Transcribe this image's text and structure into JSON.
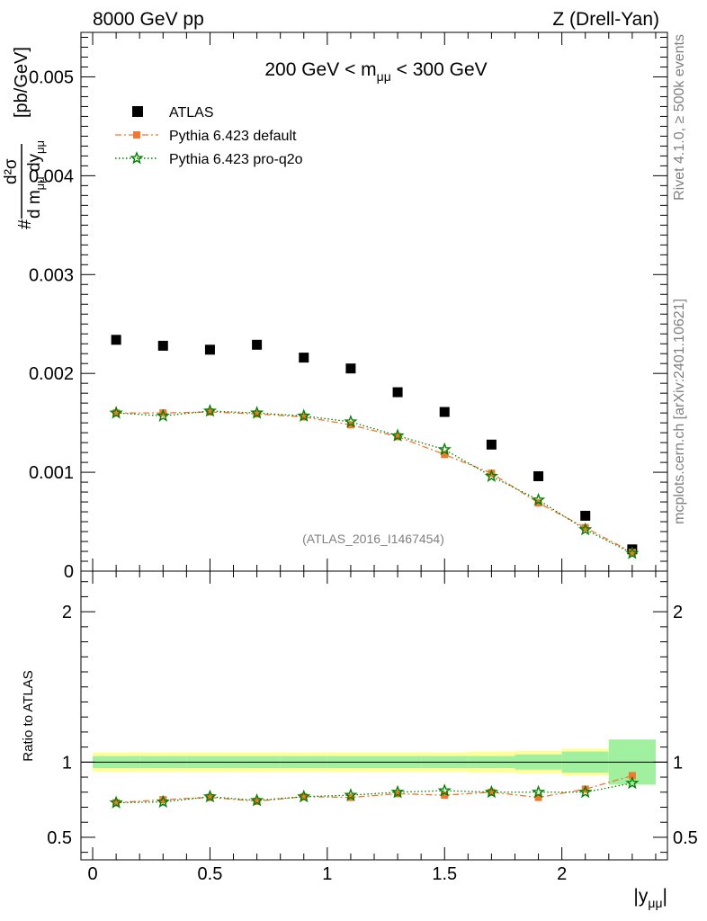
{
  "header": {
    "left": "8000 GeV pp",
    "right": "Z (Drell-Yan)"
  },
  "side": {
    "rivet": "Rivet 4.1.0, ≥ 500k events",
    "mcplots": "mcplots.cern.ch [arXiv:2401.10621]"
  },
  "chart_data": [
    {
      "type": "scatter",
      "title": "200 GeV < m_μμ < 300 GeV",
      "title_main": "200 GeV < m",
      "title_sub": "μμ",
      "title_end": " < 300 GeV",
      "ylabel": "d²σ / (d m_μμ dy_μμ) [pb/GeV]",
      "ylim": [
        0,
        0.00545
      ],
      "xlim": [
        -0.05,
        2.45
      ],
      "yticks": [
        0,
        0.001,
        0.002,
        0.003,
        0.004,
        0.005
      ],
      "ytick_labels": [
        "0",
        "0.001",
        "0.002",
        "0.003",
        "0.004",
        "0.005"
      ],
      "watermark": "(ATLAS_2016_I1467454)",
      "legend": {
        "placement": "top-left",
        "entries": [
          "ATLAS",
          "Pythia 6.423 default",
          "Pythia 6.423 pro-q2o"
        ]
      },
      "x": [
        0.1,
        0.3,
        0.5,
        0.7,
        0.9,
        1.1,
        1.3,
        1.5,
        1.7,
        1.9,
        2.1,
        2.3
      ],
      "series": [
        {
          "name": "ATLAS",
          "color": "#000000",
          "marker": "square",
          "values": [
            0.00234,
            0.00228,
            0.00224,
            0.00229,
            0.00216,
            0.00205,
            0.00181,
            0.00161,
            0.00128,
            0.00096,
            0.00056,
            0.00022
          ]
        },
        {
          "name": "Pythia 6.423 default",
          "color": "#f07830",
          "marker": "square",
          "line": "dashdot",
          "values": [
            0.0016,
            0.0016,
            0.00161,
            0.00159,
            0.00156,
            0.00148,
            0.00136,
            0.00118,
            0.00099,
            0.00069,
            0.00044,
            0.00019
          ]
        },
        {
          "name": "Pythia 6.423 pro-q2o",
          "color": "#008000",
          "marker": "star",
          "line": "dotted",
          "values": [
            0.0016,
            0.00157,
            0.00162,
            0.0016,
            0.00157,
            0.00151,
            0.00137,
            0.00123,
            0.00096,
            0.00072,
            0.00042,
            0.00018
          ]
        }
      ]
    },
    {
      "type": "scatter",
      "title": "Ratio to ATLAS",
      "ylabel": "Ratio to ATLAS",
      "xlabel": "|y_μμ|",
      "xlabel_main": "|y",
      "xlabel_sub": "μμ",
      "xlabel_end": "|",
      "ylim": [
        0.35,
        2.27
      ],
      "xlim": [
        -0.05,
        2.45
      ],
      "yticks": [
        0.5,
        1,
        2
      ],
      "ytick_labels": [
        "0.5",
        "1",
        "2"
      ],
      "xticks": [
        0,
        0.5,
        1,
        1.5,
        2
      ],
      "xtick_labels": [
        "0",
        "0.5",
        "1",
        "1.5",
        "2"
      ],
      "bins": [
        [
          0.0,
          0.2
        ],
        [
          0.2,
          0.4
        ],
        [
          0.4,
          0.6
        ],
        [
          0.6,
          0.8
        ],
        [
          0.8,
          1.0
        ],
        [
          1.0,
          1.2
        ],
        [
          1.2,
          1.4
        ],
        [
          1.4,
          1.6
        ],
        [
          1.6,
          1.8
        ],
        [
          1.8,
          2.0
        ],
        [
          2.0,
          2.2
        ],
        [
          2.2,
          2.4
        ]
      ],
      "band_stat": [
        0.04,
        0.04,
        0.04,
        0.04,
        0.04,
        0.04,
        0.04,
        0.04,
        0.04,
        0.05,
        0.07,
        0.15
      ],
      "band_total": [
        0.065,
        0.065,
        0.065,
        0.065,
        0.065,
        0.065,
        0.065,
        0.065,
        0.07,
        0.075,
        0.09,
        0.15
      ],
      "band_colors": {
        "stat": "#a0f0a0",
        "total": "#ffff99"
      },
      "x": [
        0.1,
        0.3,
        0.5,
        0.7,
        0.9,
        1.1,
        1.3,
        1.5,
        1.7,
        1.9,
        2.1,
        2.3
      ],
      "series": [
        {
          "name": "Pythia 6.423 default",
          "color": "#f07830",
          "marker": "square",
          "line": "dashdot",
          "values": [
            0.73,
            0.75,
            0.765,
            0.74,
            0.77,
            0.765,
            0.79,
            0.78,
            0.8,
            0.765,
            0.82,
            0.91
          ]
        },
        {
          "name": "Pythia 6.423 pro-q2o",
          "color": "#008000",
          "marker": "star",
          "line": "dotted",
          "values": [
            0.73,
            0.735,
            0.77,
            0.745,
            0.77,
            0.78,
            0.8,
            0.81,
            0.8,
            0.8,
            0.8,
            0.86
          ]
        }
      ]
    }
  ]
}
